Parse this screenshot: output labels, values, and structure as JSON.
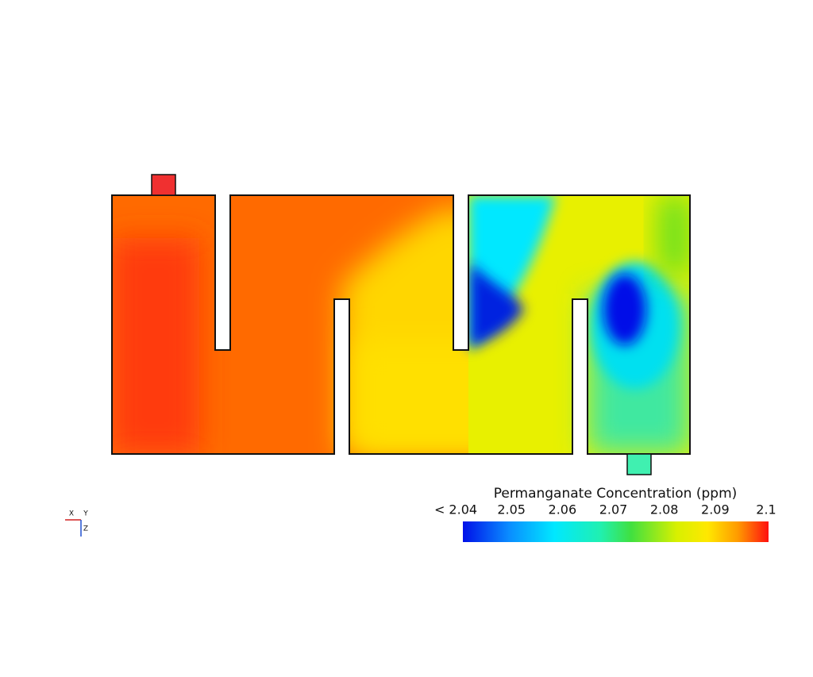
{
  "colorbar": {
    "title": "Permanganate Concentration (ppm)",
    "ticks": [
      {
        "value": 2.04,
        "label": "< 2.04"
      },
      2.05,
      2.06,
      2.07,
      2.08,
      2.09,
      2.1
    ]
  },
  "triad": {
    "x": "X",
    "y": "Y",
    "z": "Z"
  }
}
